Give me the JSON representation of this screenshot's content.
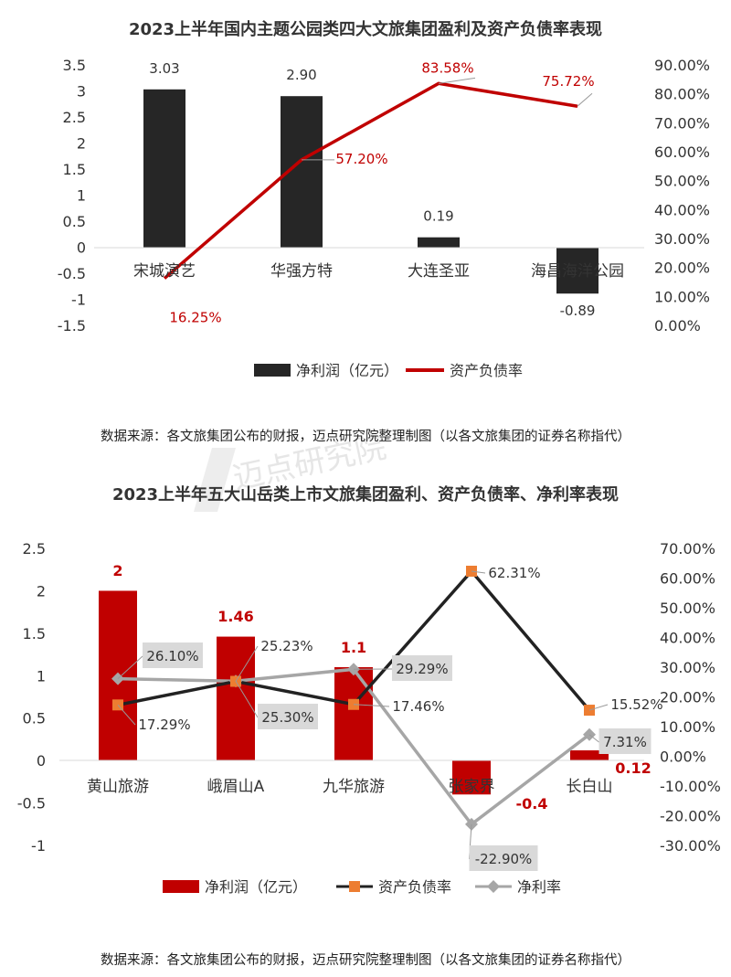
{
  "colors": {
    "bar_black": "#262626",
    "line_red": "#c00000",
    "bar_red": "#c00000",
    "line_black": "#222222",
    "marker_orange": "#ed7d31",
    "line_gray": "#a6a6a6",
    "label_bg": "#d9d9d9"
  },
  "watermark": "迈点研究院",
  "chart_data": [
    {
      "type": "bar",
      "title": "2023上半年国内主题公园类四大文旅集团盈利及资产负债率表现",
      "categories": [
        "宋城演艺",
        "华强方特",
        "大连圣亚",
        "海昌海洋公园"
      ],
      "series": [
        {
          "name": "净利润（亿元）",
          "type": "bar",
          "axis": "left",
          "values": [
            3.03,
            2.9,
            0.19,
            -0.89
          ],
          "labels": [
            "3.03",
            "2.90",
            "0.19",
            "-0.89"
          ]
        },
        {
          "name": "资产负债率",
          "type": "line",
          "axis": "right",
          "values": [
            16.25,
            57.2,
            83.58,
            75.72
          ],
          "labels": [
            "16.25%",
            "57.20%",
            "83.58%",
            "75.72%"
          ]
        }
      ],
      "y_left": {
        "min": -1.5,
        "max": 3.5,
        "ticks": [
          "3.5",
          "3",
          "2.5",
          "2",
          "1.5",
          "1",
          "0.5",
          "0",
          "-0.5",
          "-1",
          "-1.5"
        ]
      },
      "y_right": {
        "min": 0,
        "max": 90,
        "ticks": [
          "90.00%",
          "80.00%",
          "70.00%",
          "60.00%",
          "50.00%",
          "40.00%",
          "30.00%",
          "20.00%",
          "10.00%",
          "0.00%"
        ]
      },
      "legend": "bottom",
      "source": "数据来源：各文旅集团公布的财报，迈点研究院整理制图（以各文旅集团的证券名称指代）"
    },
    {
      "type": "bar",
      "title": "2023上半年五大山岳类上市文旅集团盈利、资产负债率、净利率表现",
      "categories": [
        "黄山旅游",
        "峨眉山A",
        "九华旅游",
        "张家界",
        "长白山"
      ],
      "series": [
        {
          "name": "净利润（亿元）",
          "type": "bar",
          "axis": "left",
          "values": [
            2,
            1.46,
            1.1,
            -0.4,
            0.12
          ],
          "labels": [
            "2",
            "1.46",
            "1.1",
            "-0.4",
            "0.12"
          ]
        },
        {
          "name": "资产负债率",
          "type": "line",
          "axis": "right",
          "values": [
            17.29,
            25.23,
            17.46,
            62.31,
            15.52
          ],
          "labels": [
            "17.29%",
            "25.23%",
            "17.46%",
            "62.31%",
            "15.52%"
          ]
        },
        {
          "name": "净利率",
          "type": "line",
          "axis": "right",
          "values": [
            26.1,
            25.3,
            29.29,
            -22.9,
            7.31
          ],
          "labels": [
            "26.10%",
            "25.30%",
            "29.29%",
            "-22.90%",
            "7.31%"
          ]
        }
      ],
      "y_left": {
        "min": -1,
        "max": 2.5,
        "ticks": [
          "2.5",
          "2",
          "1.5",
          "1",
          "0.5",
          "0",
          "-0.5",
          "-1"
        ]
      },
      "y_right": {
        "min": -30,
        "max": 70,
        "ticks": [
          "70.00%",
          "60.00%",
          "50.00%",
          "40.00%",
          "30.00%",
          "20.00%",
          "10.00%",
          "0.00%",
          "-10.00%",
          "-20.00%",
          "-30.00%"
        ]
      },
      "legend": "bottom",
      "source": "数据来源：各文旅集团公布的财报，迈点研究院整理制图（以各文旅集团的证券名称指代）"
    }
  ]
}
